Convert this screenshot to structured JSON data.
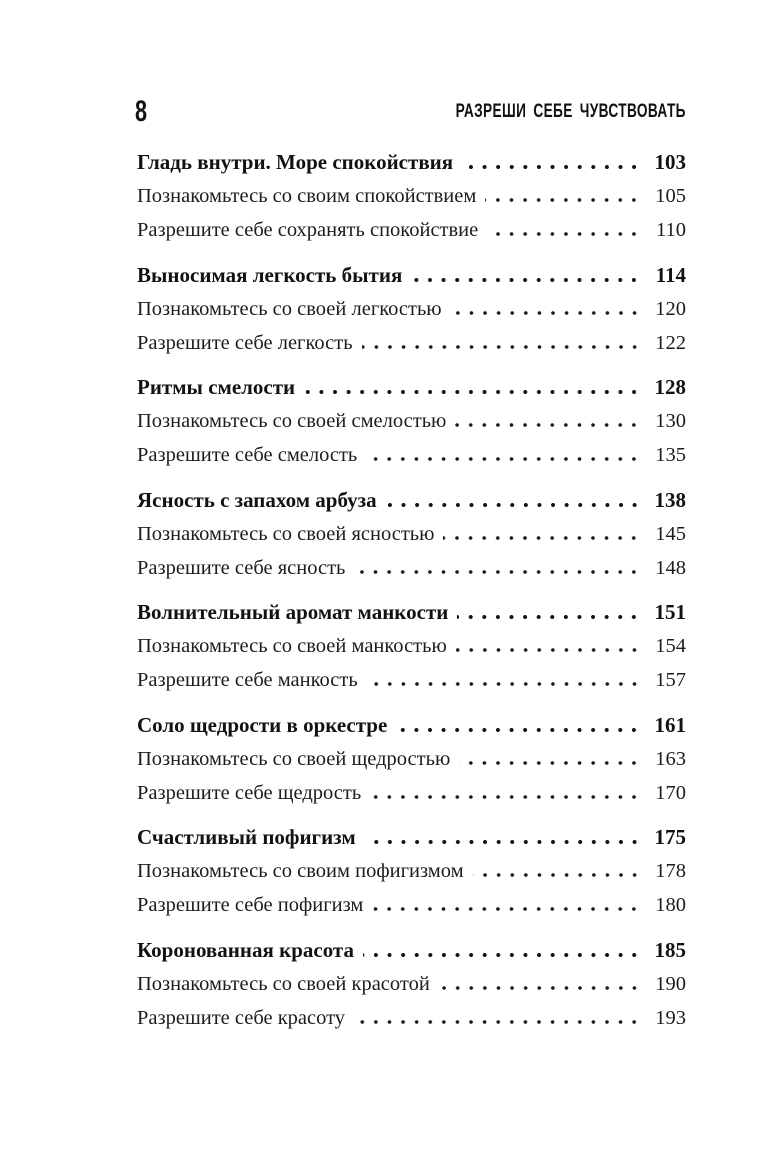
{
  "page": {
    "number": "8",
    "running_title": "РАЗРЕШИ СЕБЕ ЧУВСТВОВАТЬ"
  },
  "colors": {
    "background": "#ffffff",
    "text": "#161616"
  },
  "toc": {
    "sections": [
      {
        "title": "Гладь внутри. Море спокойствия",
        "page": "103",
        "subs": [
          {
            "label": "Познакомьтесь со своим спокойствием",
            "page": "105"
          },
          {
            "label": "Разрешите себе сохранять спокойствие",
            "page": "110"
          }
        ]
      },
      {
        "title": "Выносимая легкость бытия",
        "page": "114",
        "subs": [
          {
            "label": "Познакомьтесь со своей легкостью",
            "page": "120"
          },
          {
            "label": "Разрешите себе легкость",
            "page": "122"
          }
        ]
      },
      {
        "title": "Ритмы смелости",
        "page": "128",
        "subs": [
          {
            "label": "Познакомьтесь со своей смелостью",
            "page": "130"
          },
          {
            "label": "Разрешите себе смелость",
            "page": "135"
          }
        ]
      },
      {
        "title": "Ясность с запахом арбуза",
        "page": "138",
        "subs": [
          {
            "label": "Познакомьтесь со своей ясностью",
            "page": "145"
          },
          {
            "label": "Разрешите себе ясность",
            "page": "148"
          }
        ]
      },
      {
        "title": "Волнительный аромат манкости",
        "page": "151",
        "subs": [
          {
            "label": "Познакомьтесь со своей манкостью",
            "page": "154"
          },
          {
            "label": "Разрешите себе манкость",
            "page": "157"
          }
        ]
      },
      {
        "title": "Соло щедрости в оркестре",
        "page": "161",
        "subs": [
          {
            "label": "Познакомьтесь со своей щедростью",
            "page": "163"
          },
          {
            "label": "Разрешите себе щедрость",
            "page": "170"
          }
        ]
      },
      {
        "title": "Счастливый пофигизм",
        "page": "175",
        "subs": [
          {
            "label": "Познакомьтесь со своим пофигизмом",
            "page": "178"
          },
          {
            "label": "Разрешите себе пофигизм",
            "page": "180"
          }
        ]
      },
      {
        "title": "Коронованная красота",
        "page": "185",
        "subs": [
          {
            "label": "Познакомьтесь со своей красотой",
            "page": "190"
          },
          {
            "label": "Разрешите себе красоту",
            "page": "193"
          }
        ]
      }
    ]
  }
}
